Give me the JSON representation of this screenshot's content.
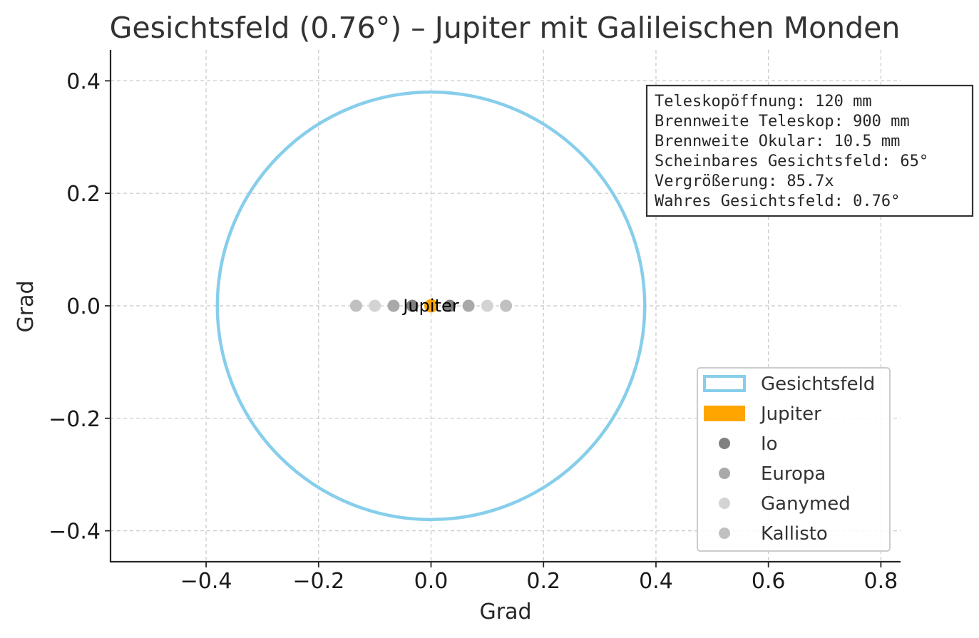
{
  "chart_data": {
    "type": "scatter",
    "title": "Gesichtsfeld (0.76°) – Jupiter mit Galileischen Monden",
    "xlabel": "Grad",
    "ylabel": "Grad",
    "xlim": [
      -0.57,
      0.835
    ],
    "ylim": [
      -0.455,
      0.455
    ],
    "xticks": [
      -0.4,
      -0.2,
      0.0,
      0.2,
      0.4,
      0.6,
      0.8
    ],
    "yticks": [
      0.4,
      0.2,
      0.0,
      -0.2,
      -0.4
    ],
    "xtick_labels": [
      "−0.4",
      "−0.2",
      "0.0",
      "0.2",
      "0.4",
      "0.6",
      "0.8"
    ],
    "ytick_labels": [
      "0.4",
      "0.2",
      "0.0",
      "−0.2",
      "−0.4"
    ],
    "grid": true,
    "field_of_view": {
      "name": "Gesichtsfeld",
      "center": [
        0,
        0
      ],
      "radius": 0.38,
      "color": "#87ceeb"
    },
    "jupiter": {
      "name": "Jupiter",
      "x": 0,
      "y": 0,
      "color": "#ffa500",
      "label": "Jupiter"
    },
    "series": [
      {
        "name": "Io",
        "color": "#808080",
        "points": [
          [
            -0.0333,
            0
          ],
          [
            0.0333,
            0
          ]
        ]
      },
      {
        "name": "Europa",
        "color": "#a9a9a9",
        "points": [
          [
            -0.0667,
            0
          ],
          [
            0.0667,
            0
          ]
        ]
      },
      {
        "name": "Ganymed",
        "color": "#d3d3d3",
        "points": [
          [
            -0.1,
            0
          ],
          [
            0.1,
            0
          ]
        ]
      },
      {
        "name": "Kallisto",
        "color": "#c0c0c0",
        "points": [
          [
            -0.1333,
            0
          ],
          [
            0.1333,
            0
          ]
        ]
      }
    ],
    "info_box": [
      "Teleskopöffnung: 120 mm",
      "Brennweite Teleskop: 900 mm",
      "Brennweite Okular: 10.5 mm",
      "Scheinbares Gesichtsfeld: 65°",
      "Vergrößerung: 85.7x",
      "Wahres Gesichtsfeld: 0.76°"
    ],
    "legend_placement": "lower-right",
    "legend": [
      {
        "label": "Gesichtsfeld",
        "kind": "ring",
        "color": "#87ceeb"
      },
      {
        "label": "Jupiter",
        "kind": "patch",
        "color": "#ffa500"
      },
      {
        "label": "Io",
        "kind": "dot",
        "color": "#808080"
      },
      {
        "label": "Europa",
        "kind": "dot",
        "color": "#a9a9a9"
      },
      {
        "label": "Ganymed",
        "kind": "dot",
        "color": "#d3d3d3"
      },
      {
        "label": "Kallisto",
        "kind": "dot",
        "color": "#c0c0c0"
      }
    ]
  }
}
